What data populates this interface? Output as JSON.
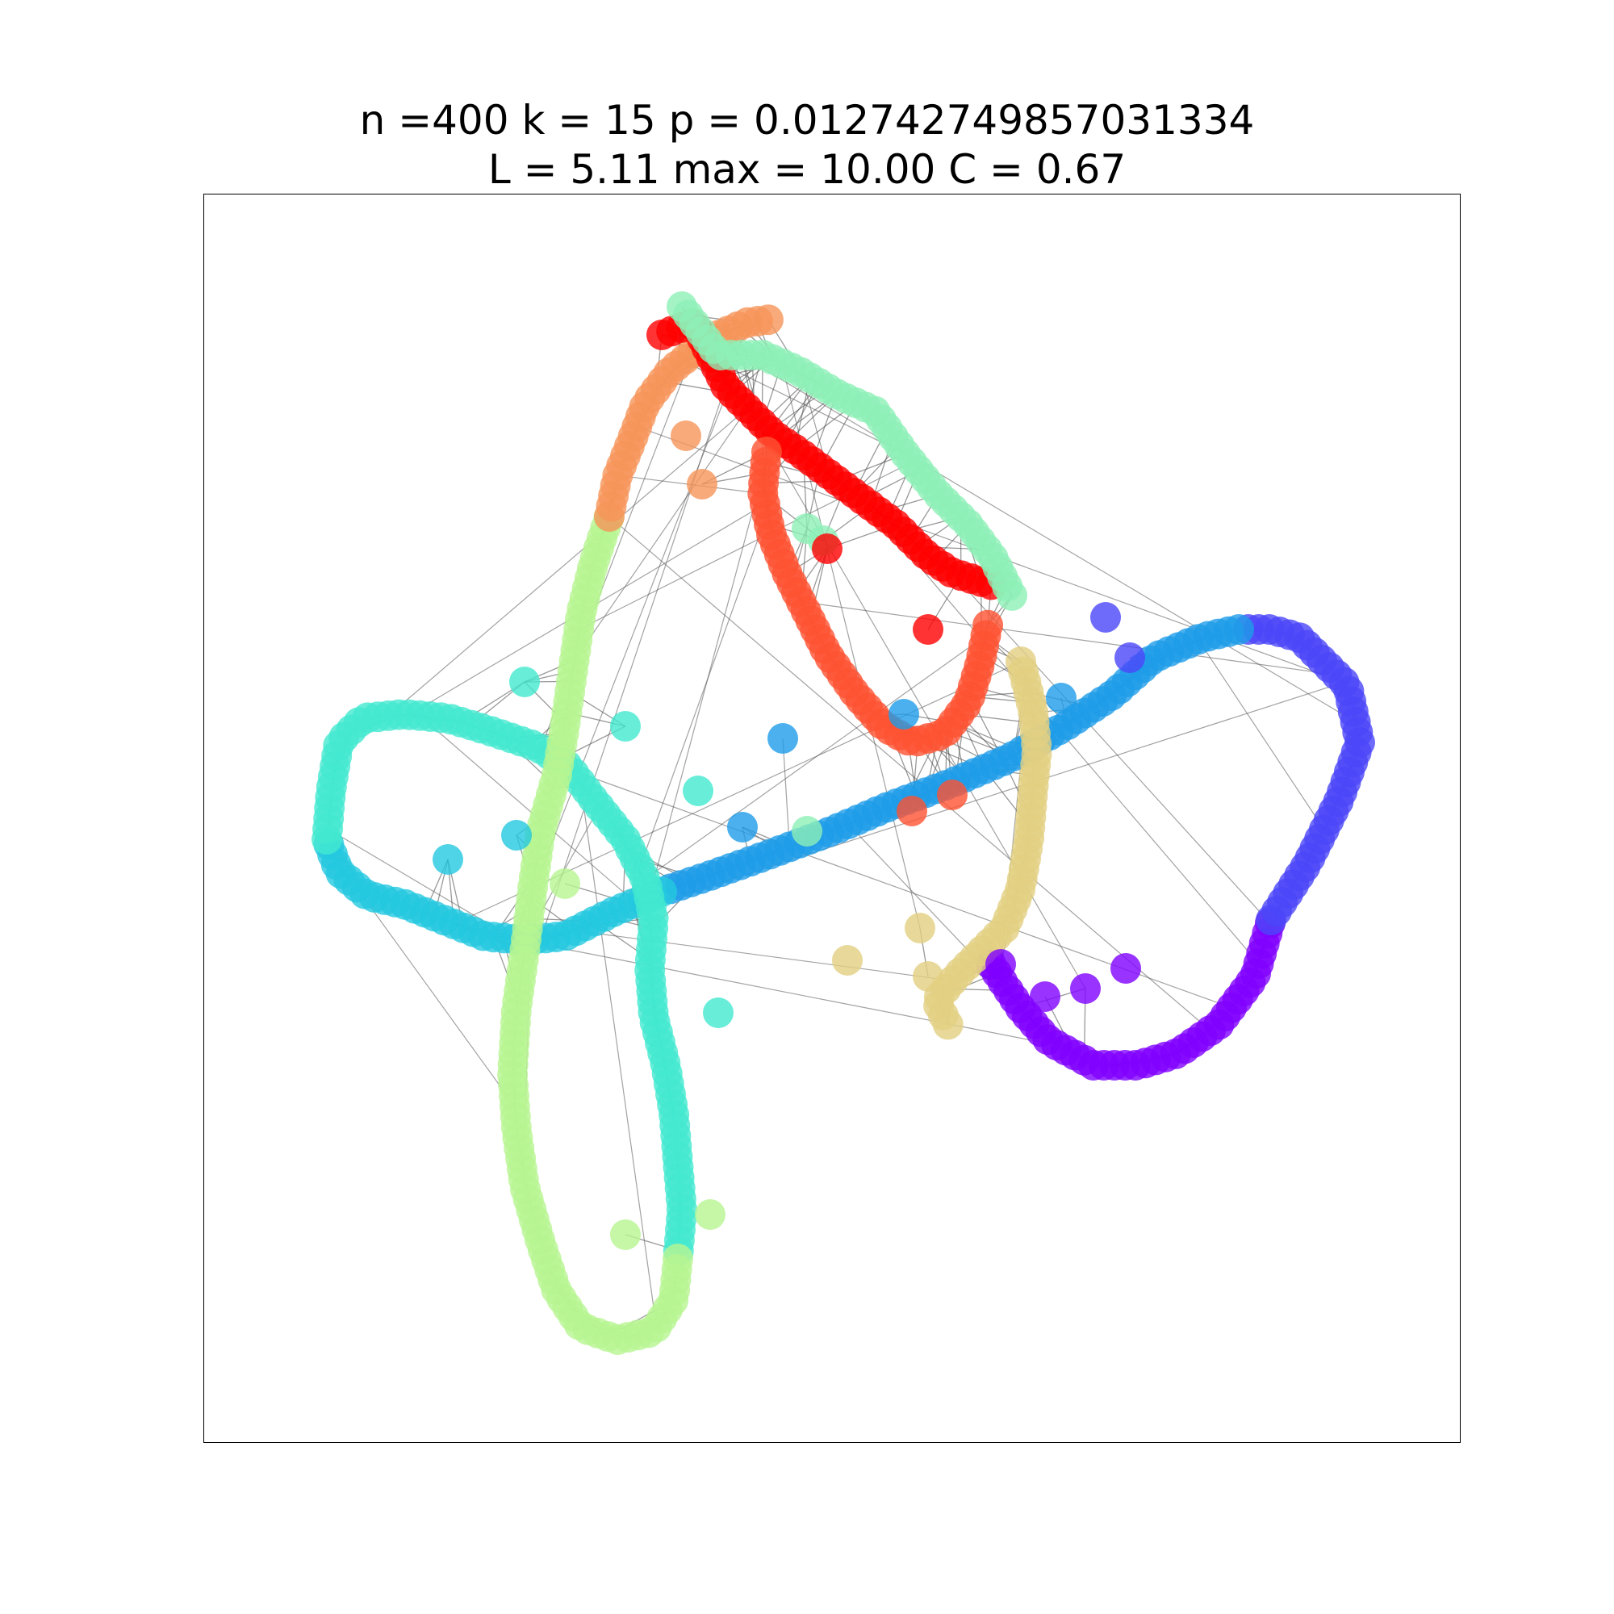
{
  "title": {
    "line1": "n =400 k = 15 p = 0.012742749857031334",
    "line2": "L = 5.11 max = 10.00 C = 0.67"
  },
  "graph": {
    "type": "network",
    "node_count": 400,
    "colormap": [
      "#7f00ff",
      "#4b46f9",
      "#1e9ce8",
      "#23c8e0",
      "#42e8d0",
      "#8df0b6",
      "#b6f591",
      "#e2cf82",
      "#f6955a",
      "#fe5232",
      "#ff0000"
    ],
    "edge_color": "#555555",
    "node_alpha": 0.8
  }
}
